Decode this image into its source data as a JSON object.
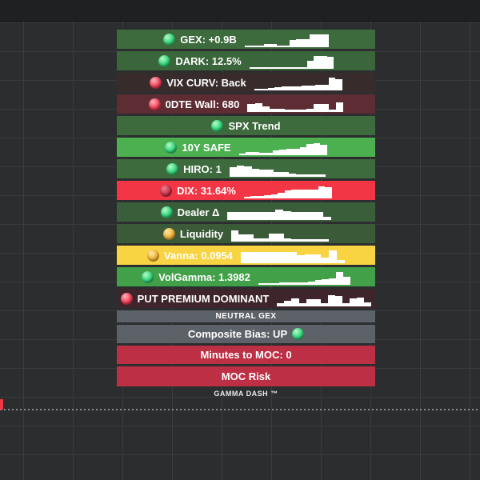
{
  "colors": {
    "background": "#2b2d2e",
    "grid_line": "#3a3d3e",
    "top_strip": "#1e2021",
    "price_marker_red": "#f23645",
    "dotted_line": "#9aa0a6",
    "text": "#ffffff"
  },
  "panel": {
    "rows": [
      {
        "label": "GEX: +0.9B",
        "dot": "green",
        "bg": "#3e6b3e",
        "spark_w": 105,
        "spark": [
          0,
          0,
          0,
          0.12,
          0.12,
          0,
          0,
          0.48,
          0.55,
          0.55,
          0.95,
          0.95,
          0.9
        ]
      },
      {
        "label": "DARK: 12.5%",
        "dot": "green",
        "bg": "#3b653b",
        "spark_w": 105,
        "spark": [
          0,
          0,
          0,
          0,
          0,
          0,
          0,
          0,
          0,
          0.55,
          0.9,
          0.9,
          0.85
        ]
      },
      {
        "label": "VIX CURV: Back",
        "dot": "red",
        "bg": "#382b2b",
        "spark_w": 110,
        "spark": [
          0,
          0,
          0.08,
          0.12,
          0.18,
          0.2,
          0.22,
          0.25,
          0.28,
          0.3,
          0.35,
          0.9,
          0.8
        ]
      },
      {
        "label": "0DTE Wall: 680",
        "dot": "red",
        "bg": "#5e2c33",
        "spark_w": 120,
        "spark": [
          0.55,
          0.62,
          0.3,
          0.15,
          0.1,
          0.08,
          0.08,
          0.08,
          0.1,
          0.55,
          0.5,
          0.08,
          0.65
        ]
      },
      {
        "label": "SPX Trend",
        "dot": "green",
        "bg": "#3e6b3e",
        "spark_w": 0,
        "spark": null
      },
      {
        "label": "10Y SAFE",
        "dot": "green",
        "bg": "#4caf50",
        "spark_w": 110,
        "spark": [
          0,
          0.1,
          0.12,
          0.06,
          0.06,
          0.28,
          0.32,
          0.38,
          0.42,
          0.5,
          0.78,
          0.85,
          0.75
        ]
      },
      {
        "label": "HIRO: 1",
        "dot": "green",
        "bg": "#3e6b3e",
        "spark_w": 120,
        "spark": [
          0.65,
          0.8,
          0.72,
          0.5,
          0.48,
          0.45,
          0.28,
          0.26,
          0.12,
          0.05,
          0.04,
          0.04,
          0.04
        ]
      },
      {
        "label": "DIX: 31.64%",
        "dot": "darkred",
        "bg": "#f23645",
        "spark_w": 110,
        "spark": [
          0,
          0.04,
          0.08,
          0.15,
          0.22,
          0.3,
          0.55,
          0.6,
          0.6,
          0.6,
          0.62,
          0.88,
          0.78
        ]
      },
      {
        "label": "Dealer Δ",
        "dot": "green",
        "bg": "#3b5e3a",
        "spark_w": 130,
        "spark": [
          0.5,
          0.5,
          0.5,
          0.52,
          0.52,
          0.52,
          0.75,
          0.62,
          0.52,
          0.52,
          0.55,
          0.55,
          0.1
        ]
      },
      {
        "label": "Liquidity",
        "dot": "amber",
        "bg": "#3a5a38",
        "spark_w": 122,
        "spark": [
          0.82,
          0.48,
          0.48,
          0.1,
          0.1,
          0.5,
          0.5,
          0.1,
          0.08,
          0.08,
          0.04,
          0.04,
          0.04
        ]
      },
      {
        "label": "Vanna: 0.0954",
        "dot": "amber",
        "bg": "#f8d342",
        "spark_w": 130,
        "spark": [
          0.8,
          0.8,
          0.8,
          0.8,
          0.8,
          0.8,
          0.78,
          0.5,
          0.6,
          0.6,
          0.3,
          0.95,
          0.15
        ]
      },
      {
        "label": "VolGamma: 1.3982",
        "dot": "green",
        "bg": "#42a049",
        "spark_w": 115,
        "spark": [
          0,
          0,
          0,
          0.08,
          0.08,
          0.04,
          0.04,
          0.1,
          0.28,
          0.32,
          0.42,
          0.9,
          0.55
        ]
      },
      {
        "label": "PUT PREMIUM DOMINANT",
        "dot": "red",
        "bg": "#3d252b",
        "spark_w": 118,
        "spark": [
          0.1,
          0.3,
          0.5,
          0.15,
          0.45,
          0.45,
          0.1,
          0.8,
          0.7,
          0.15,
          0.5,
          0.6,
          0.2
        ]
      },
      {
        "label": "NEUTRAL GEX",
        "dot": null,
        "bg": "#5d6168",
        "spark_w": 0,
        "spark": null
      },
      {
        "label": "Composite Bias: UP",
        "dot": "green",
        "bg": "#5d6168",
        "spark_w": 0,
        "spark": null
      },
      {
        "label": "Minutes to MOC: 0",
        "dot": null,
        "bg": "#bd2f44",
        "spark_w": 0,
        "spark": null
      },
      {
        "label": "MOC Risk",
        "dot": null,
        "bg": "#bd2f44",
        "spark_w": 0,
        "spark": null
      }
    ],
    "watermark": "GAMMA DASH ™"
  }
}
